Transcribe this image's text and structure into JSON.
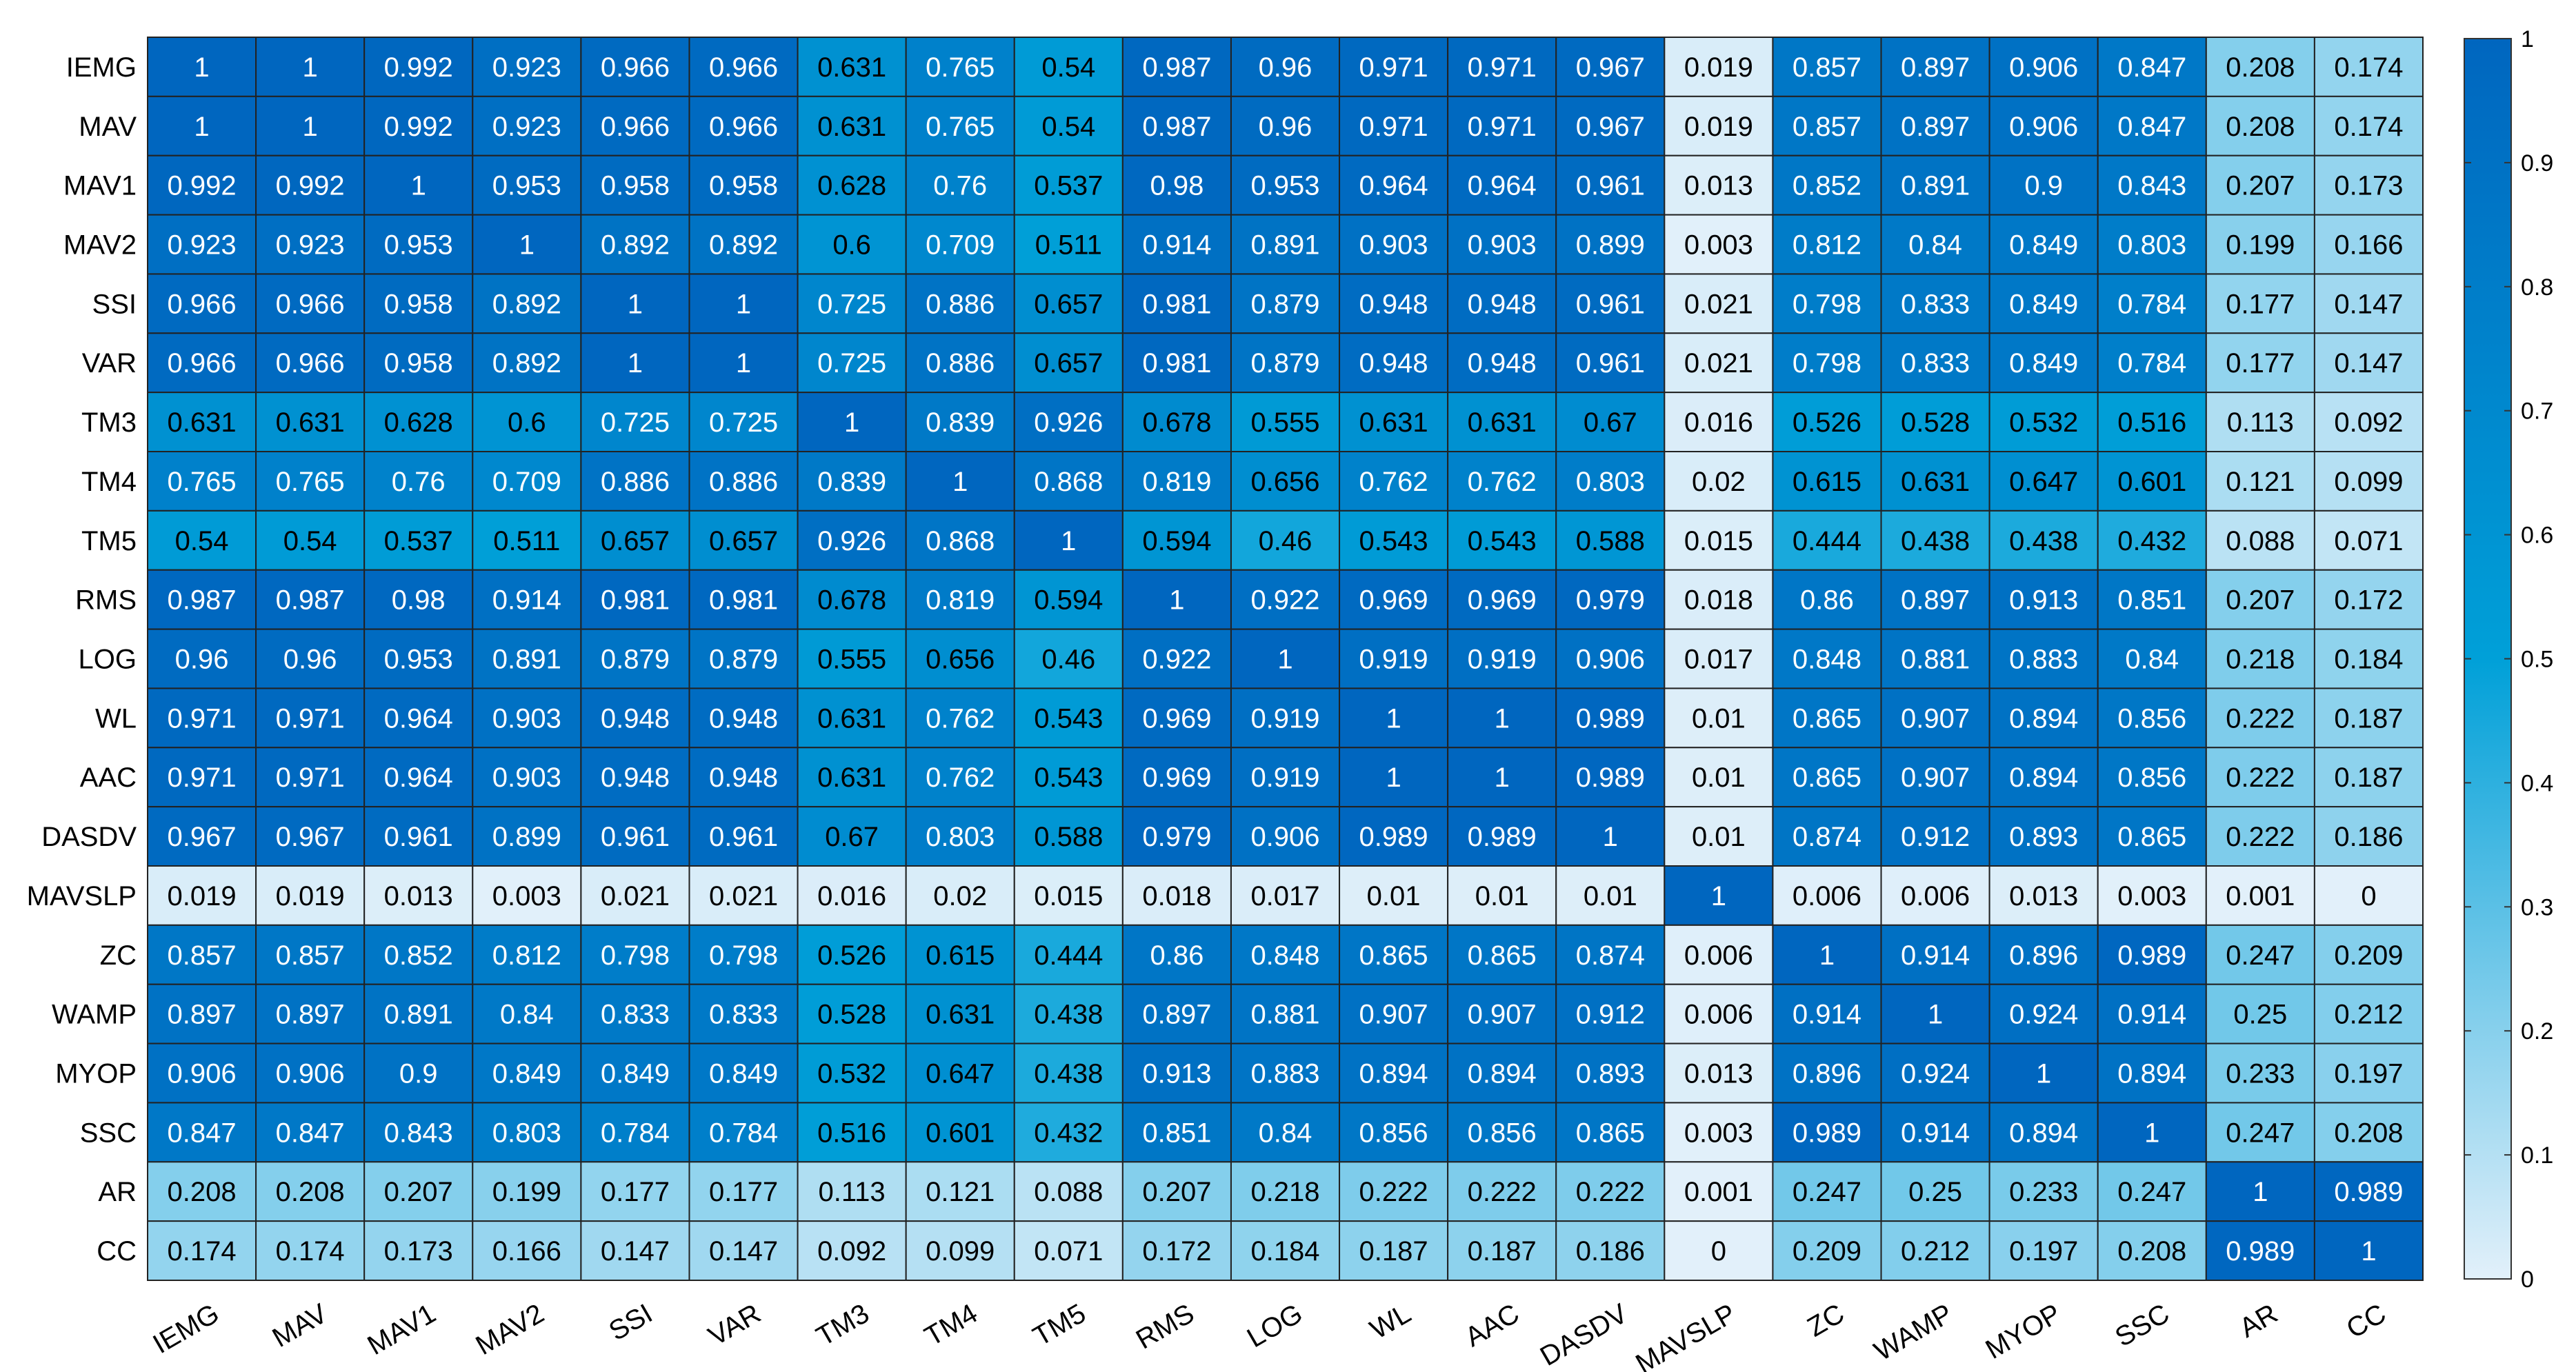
{
  "chart_data": {
    "type": "heatmap",
    "title": "",
    "xlabel": "",
    "ylabel": "",
    "row_labels": [
      "IEMG",
      "MAV",
      "MAV1",
      "MAV2",
      "SSI",
      "VAR",
      "TM3",
      "TM4",
      "TM5",
      "RMS",
      "LOG",
      "WL",
      "AAC",
      "DASDV",
      "MAVSLP",
      "ZC",
      "WAMP",
      "MYOP",
      "SSC",
      "AR",
      "CC"
    ],
    "col_labels": [
      "IEMG",
      "MAV",
      "MAV1",
      "MAV2",
      "SSI",
      "VAR",
      "TM3",
      "TM4",
      "TM5",
      "RMS",
      "LOG",
      "WL",
      "AAC",
      "DASDV",
      "MAVSLP",
      "ZC",
      "WAMP",
      "MYOP",
      "SSC",
      "AR",
      "CC"
    ],
    "values": [
      [
        1,
        1,
        0.992,
        0.923,
        0.966,
        0.966,
        0.631,
        0.765,
        0.54,
        0.987,
        0.96,
        0.971,
        0.971,
        0.967,
        0.019,
        0.857,
        0.897,
        0.906,
        0.847,
        0.208,
        0.174
      ],
      [
        1,
        1,
        0.992,
        0.923,
        0.966,
        0.966,
        0.631,
        0.765,
        0.54,
        0.987,
        0.96,
        0.971,
        0.971,
        0.967,
        0.019,
        0.857,
        0.897,
        0.906,
        0.847,
        0.208,
        0.174
      ],
      [
        0.992,
        0.992,
        1,
        0.953,
        0.958,
        0.958,
        0.628,
        0.76,
        0.537,
        0.98,
        0.953,
        0.964,
        0.964,
        0.961,
        0.013,
        0.852,
        0.891,
        0.9,
        0.843,
        0.207,
        0.173
      ],
      [
        0.923,
        0.923,
        0.953,
        1,
        0.892,
        0.892,
        0.6,
        0.709,
        0.511,
        0.914,
        0.891,
        0.903,
        0.903,
        0.899,
        0.003,
        0.812,
        0.84,
        0.849,
        0.803,
        0.199,
        0.166
      ],
      [
        0.966,
        0.966,
        0.958,
        0.892,
        1,
        1,
        0.725,
        0.886,
        0.657,
        0.981,
        0.879,
        0.948,
        0.948,
        0.961,
        0.021,
        0.798,
        0.833,
        0.849,
        0.784,
        0.177,
        0.147
      ],
      [
        0.966,
        0.966,
        0.958,
        0.892,
        1,
        1,
        0.725,
        0.886,
        0.657,
        0.981,
        0.879,
        0.948,
        0.948,
        0.961,
        0.021,
        0.798,
        0.833,
        0.849,
        0.784,
        0.177,
        0.147
      ],
      [
        0.631,
        0.631,
        0.628,
        0.6,
        0.725,
        0.725,
        1,
        0.839,
        0.926,
        0.678,
        0.555,
        0.631,
        0.631,
        0.67,
        0.016,
        0.526,
        0.528,
        0.532,
        0.516,
        0.113,
        0.092
      ],
      [
        0.765,
        0.765,
        0.76,
        0.709,
        0.886,
        0.886,
        0.839,
        1,
        0.868,
        0.819,
        0.656,
        0.762,
        0.762,
        0.803,
        0.02,
        0.615,
        0.631,
        0.647,
        0.601,
        0.121,
        0.099
      ],
      [
        0.54,
        0.54,
        0.537,
        0.511,
        0.657,
        0.657,
        0.926,
        0.868,
        1,
        0.594,
        0.46,
        0.543,
        0.543,
        0.588,
        0.015,
        0.444,
        0.438,
        0.438,
        0.432,
        0.088,
        0.071
      ],
      [
        0.987,
        0.987,
        0.98,
        0.914,
        0.981,
        0.981,
        0.678,
        0.819,
        0.594,
        1,
        0.922,
        0.969,
        0.969,
        0.979,
        0.018,
        0.86,
        0.897,
        0.913,
        0.851,
        0.207,
        0.172
      ],
      [
        0.96,
        0.96,
        0.953,
        0.891,
        0.879,
        0.879,
        0.555,
        0.656,
        0.46,
        0.922,
        1,
        0.919,
        0.919,
        0.906,
        0.017,
        0.848,
        0.881,
        0.883,
        0.84,
        0.218,
        0.184
      ],
      [
        0.971,
        0.971,
        0.964,
        0.903,
        0.948,
        0.948,
        0.631,
        0.762,
        0.543,
        0.969,
        0.919,
        1,
        1,
        0.989,
        0.01,
        0.865,
        0.907,
        0.894,
        0.856,
        0.222,
        0.187
      ],
      [
        0.971,
        0.971,
        0.964,
        0.903,
        0.948,
        0.948,
        0.631,
        0.762,
        0.543,
        0.969,
        0.919,
        1,
        1,
        0.989,
        0.01,
        0.865,
        0.907,
        0.894,
        0.856,
        0.222,
        0.187
      ],
      [
        0.967,
        0.967,
        0.961,
        0.899,
        0.961,
        0.961,
        0.67,
        0.803,
        0.588,
        0.979,
        0.906,
        0.989,
        0.989,
        1,
        0.01,
        0.874,
        0.912,
        0.893,
        0.865,
        0.222,
        0.186
      ],
      [
        0.019,
        0.019,
        0.013,
        0.003,
        0.021,
        0.021,
        0.016,
        0.02,
        0.015,
        0.018,
        0.017,
        0.01,
        0.01,
        0.01,
        1,
        0.006,
        0.006,
        0.013,
        0.003,
        0.001,
        0
      ],
      [
        0.857,
        0.857,
        0.852,
        0.812,
        0.798,
        0.798,
        0.526,
        0.615,
        0.444,
        0.86,
        0.848,
        0.865,
        0.865,
        0.874,
        0.006,
        1,
        0.914,
        0.896,
        0.989,
        0.247,
        0.209
      ],
      [
        0.897,
        0.897,
        0.891,
        0.84,
        0.833,
        0.833,
        0.528,
        0.631,
        0.438,
        0.897,
        0.881,
        0.907,
        0.907,
        0.912,
        0.006,
        0.914,
        1,
        0.924,
        0.914,
        0.25,
        0.212
      ],
      [
        0.906,
        0.906,
        0.9,
        0.849,
        0.849,
        0.849,
        0.532,
        0.647,
        0.438,
        0.913,
        0.883,
        0.894,
        0.894,
        0.893,
        0.013,
        0.896,
        0.924,
        1,
        0.894,
        0.233,
        0.197
      ],
      [
        0.847,
        0.847,
        0.843,
        0.803,
        0.784,
        0.784,
        0.516,
        0.601,
        0.432,
        0.851,
        0.84,
        0.856,
        0.856,
        0.865,
        0.003,
        0.989,
        0.914,
        0.894,
        1,
        0.247,
        0.208
      ],
      [
        0.208,
        0.208,
        0.207,
        0.199,
        0.177,
        0.177,
        0.113,
        0.121,
        0.088,
        0.207,
        0.218,
        0.222,
        0.222,
        0.222,
        0.001,
        0.247,
        0.25,
        0.233,
        0.247,
        1,
        0.989
      ],
      [
        0.174,
        0.174,
        0.173,
        0.166,
        0.147,
        0.147,
        0.092,
        0.099,
        0.071,
        0.172,
        0.184,
        0.187,
        0.187,
        0.186,
        0,
        0.209,
        0.212,
        0.197,
        0.208,
        0.989,
        1
      ]
    ],
    "colorbar": {
      "range": [
        0,
        1
      ],
      "ticks": [
        0,
        0.1,
        0.2,
        0.3,
        0.4,
        0.5,
        0.6,
        0.7,
        0.8,
        0.9,
        1
      ],
      "tick_labels": [
        "0",
        "0.1",
        "0.2",
        "0.3",
        "0.4",
        "0.5",
        "0.6",
        "0.7",
        "0.8",
        "0.9",
        "1"
      ],
      "colors": [
        "#e2f0fa",
        "#00a0d8",
        "#0066bf"
      ]
    }
  }
}
